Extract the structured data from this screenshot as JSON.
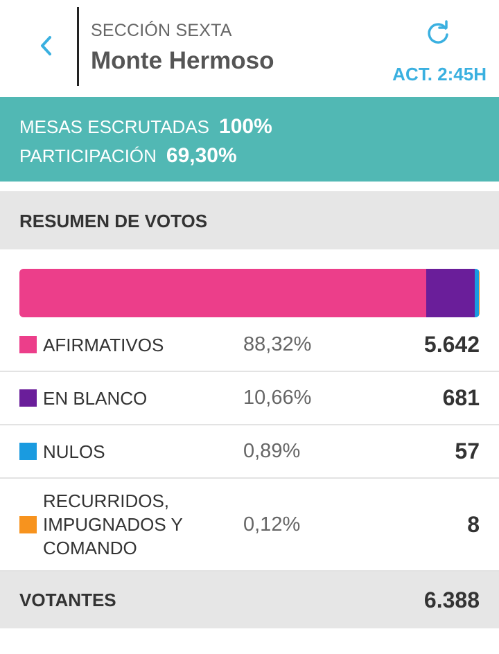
{
  "header": {
    "subtitle": "SECCIÓN SEXTA",
    "title": "Monte Hermoso",
    "updated": "ACT. 2:45H"
  },
  "stats": {
    "tables_label": "MESAS ESCRUTADAS",
    "tables_value": "100%",
    "participation_label": "PARTICIPACIÓN",
    "participation_value": "69,30%"
  },
  "summary": {
    "title": "RESUMEN DE VOTOS",
    "rows": [
      {
        "label": "AFIRMATIVOS",
        "pct": "88,32%",
        "count": "5.642",
        "share": 88.32,
        "color": "#ec3e8a"
      },
      {
        "label": "EN BLANCO",
        "pct": "10,66%",
        "count": "681",
        "share": 10.66,
        "color": "#6a1e9a"
      },
      {
        "label": "NULOS",
        "pct": "0,89%",
        "count": "57",
        "share": 0.89,
        "color": "#1a9be0"
      },
      {
        "label": "RECURRIDOS,\nIMPUGNADOS Y\nCOMANDO",
        "pct": "0,12%",
        "count": "8",
        "share": 0.12,
        "color": "#f7931e"
      }
    ],
    "total_label": "VOTANTES",
    "total_value": "6.388"
  },
  "icons": {
    "back": "chevron-left-icon",
    "refresh": "refresh-icon"
  },
  "colors": {
    "accent": "#3ab0e0",
    "stats_bg": "#51b8b4"
  }
}
